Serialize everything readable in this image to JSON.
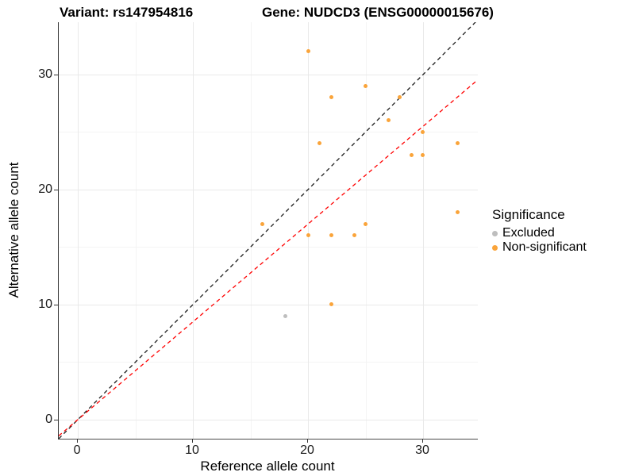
{
  "titles": {
    "variant": "Variant: rs147954816",
    "gene": "Gene: NUDCD3 (ENSG00000015676)"
  },
  "legend": {
    "title": "Significance",
    "items": [
      {
        "label": "Excluded",
        "color": "#bebebe"
      },
      {
        "label": "Non-significant",
        "color": "#faa43a"
      }
    ]
  },
  "chart_data": {
    "type": "scatter",
    "title": "Variant: rs147954816 | Gene: NUDCD3 (ENSG00000015676)",
    "xlabel": "Reference allele count",
    "ylabel": "Alternative allele count",
    "xlim": [
      -1.66,
      34.76
    ],
    "ylim": [
      -1.66,
      34.55
    ],
    "x_ticks": [
      {
        "v": 0,
        "label": "0"
      },
      {
        "v": 10,
        "label": "10"
      },
      {
        "v": 20,
        "label": "20"
      },
      {
        "v": 30,
        "label": "30"
      }
    ],
    "y_ticks": [
      {
        "v": 0,
        "label": "0"
      },
      {
        "v": 10,
        "label": "10"
      },
      {
        "v": 20,
        "label": "20"
      },
      {
        "v": 30,
        "label": "30"
      }
    ],
    "x_minor": [
      5,
      15,
      25
    ],
    "y_minor": [
      5,
      15,
      25
    ],
    "grid": true,
    "legend_position": "right",
    "series": [
      {
        "name": "Excluded",
        "color": "#bebebe",
        "points": [
          [
            18,
            9
          ]
        ]
      },
      {
        "name": "Non-significant",
        "color": "#faa43a",
        "points": [
          [
            20,
            32
          ],
          [
            25,
            29
          ],
          [
            22,
            28
          ],
          [
            28,
            28
          ],
          [
            27,
            26
          ],
          [
            30,
            25
          ],
          [
            21,
            24
          ],
          [
            33,
            24
          ],
          [
            29,
            23
          ],
          [
            30,
            23
          ],
          [
            33,
            18
          ],
          [
            16,
            17
          ],
          [
            25,
            17
          ],
          [
            20,
            16
          ],
          [
            22,
            16
          ],
          [
            24,
            16
          ],
          [
            22,
            10
          ]
        ]
      }
    ],
    "lines": [
      {
        "name": "identity-line",
        "slope": 1.0,
        "intercept": 0,
        "color": "#1a1a1a",
        "style": "dashed"
      },
      {
        "name": "expected-ratio-line",
        "slope": 0.85,
        "intercept": 0,
        "color": "#ff0000",
        "style": "dashed"
      }
    ]
  }
}
